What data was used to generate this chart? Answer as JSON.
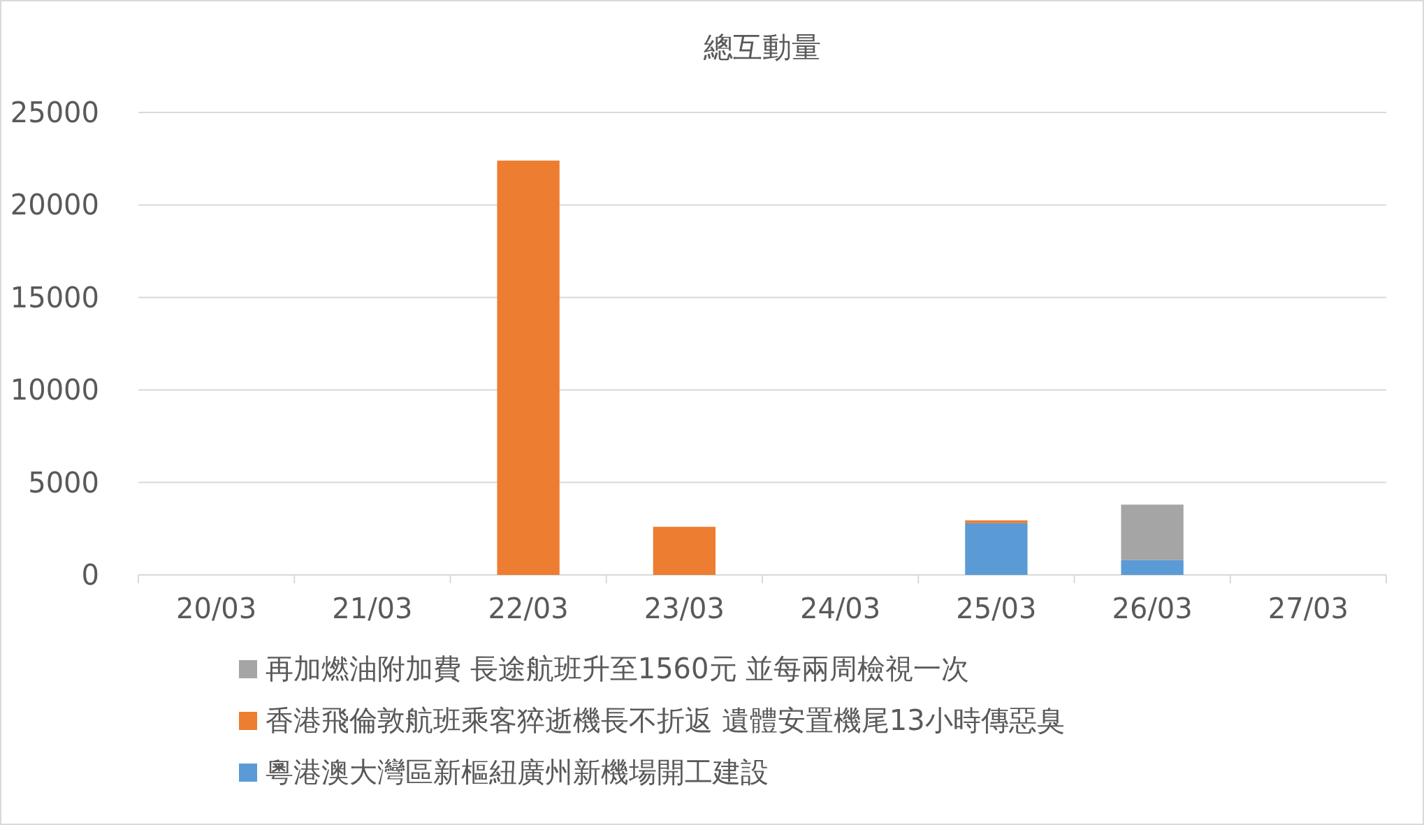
{
  "chart_data": {
    "type": "bar",
    "title": "總互動量",
    "stacked": true,
    "categories": [
      "20/03",
      "21/03",
      "22/03",
      "23/03",
      "24/03",
      "25/03",
      "26/03",
      "27/03"
    ],
    "series": [
      {
        "name": "粵港澳大灣區新樞紐廣州新機場開工建設",
        "color": "#5b9bd5",
        "values": [
          0,
          0,
          0,
          0,
          0,
          2800,
          800,
          0
        ]
      },
      {
        "name": "香港飛倫敦航班乘客猝逝機長不折返 遺體安置機尾13小時傳惡臭",
        "color": "#ed7d31",
        "values": [
          0,
          0,
          22400,
          2600,
          0,
          150,
          0,
          0
        ]
      },
      {
        "name": "再加燃油附加費 長途航班升至1560元 並每兩周檢視一次",
        "color": "#a5a5a5",
        "values": [
          0,
          0,
          0,
          0,
          0,
          0,
          3000,
          0
        ]
      }
    ],
    "ylim": [
      0,
      25000
    ],
    "yticks": [
      0,
      5000,
      10000,
      15000,
      20000,
      25000
    ],
    "grid": "y",
    "legend": "bottom"
  }
}
